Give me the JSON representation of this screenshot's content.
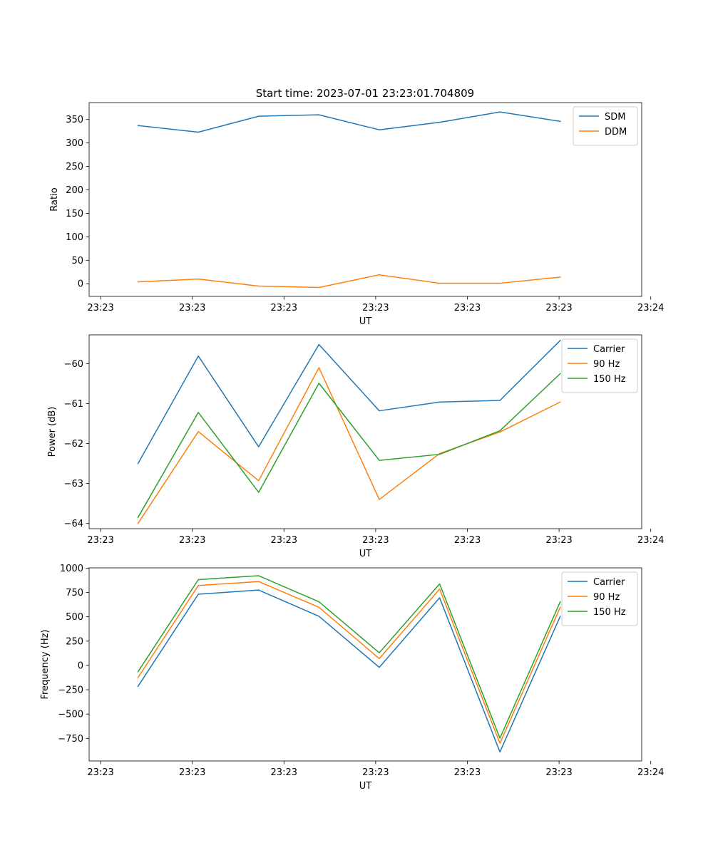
{
  "figure": {
    "title": "Start time: 2023-07-01 23:23:01.704809"
  },
  "chart_data": [
    {
      "type": "line",
      "xlabel": "UT",
      "ylabel": "Ratio",
      "x": [
        1,
        2,
        3,
        4,
        5,
        6,
        7,
        8
      ],
      "xlim": [
        0.19,
        9.35
      ],
      "xticks": [
        0.38,
        1.9,
        3.42,
        4.94,
        6.46,
        7.98,
        9.5
      ],
      "xtick_labels": [
        "23:23",
        "23:23",
        "23:23",
        "23:23",
        "23:23",
        "23:23",
        "23:24"
      ],
      "ylim": [
        -27,
        386
      ],
      "yticks": [
        0,
        50,
        100,
        150,
        200,
        250,
        300,
        350
      ],
      "ytick_labels": [
        "0",
        "50",
        "100",
        "150",
        "200",
        "250",
        "300",
        "350"
      ],
      "legend": "upper-right",
      "series": [
        {
          "name": "SDM",
          "color": "#1f77b4",
          "values": [
            337,
            323,
            357,
            360,
            328,
            344,
            366,
            346
          ]
        },
        {
          "name": "DDM",
          "color": "#ff7f0e",
          "values": [
            4,
            10,
            -5,
            -8,
            19,
            1,
            1,
            14
          ]
        }
      ]
    },
    {
      "type": "line",
      "xlabel": "UT",
      "ylabel": "Power (dB)",
      "x": [
        1,
        2,
        3,
        4,
        5,
        6,
        7,
        8
      ],
      "xlim": [
        0.19,
        9.35
      ],
      "xticks": [
        0.38,
        1.9,
        3.42,
        4.94,
        6.46,
        7.98,
        9.5
      ],
      "xtick_labels": [
        "23:23",
        "23:23",
        "23:23",
        "23:23",
        "23:23",
        "23:23",
        "23:24"
      ],
      "ylim": [
        -64.13,
        -59.28
      ],
      "yticks": [
        -64,
        -63,
        -62,
        -61,
        -60
      ],
      "ytick_labels": [
        "−64",
        "−63",
        "−62",
        "−61",
        "−60"
      ],
      "legend": "upper-right",
      "series": [
        {
          "name": "Carrier",
          "color": "#1f77b4",
          "values": [
            -62.5,
            -59.81,
            -62.08,
            -59.52,
            -61.18,
            -60.96,
            -60.92,
            -59.42
          ]
        },
        {
          "name": "90 Hz",
          "color": "#ff7f0e",
          "values": [
            -64.0,
            -61.7,
            -62.93,
            -60.1,
            -63.4,
            -62.25,
            -61.71,
            -60.96
          ]
        },
        {
          "name": "150 Hz",
          "color": "#2ca02c",
          "values": [
            -63.85,
            -61.22,
            -63.22,
            -60.49,
            -62.42,
            -62.27,
            -61.68,
            -60.25
          ]
        }
      ]
    },
    {
      "type": "line",
      "xlabel": "UT",
      "ylabel": "Frequency (Hz)",
      "x": [
        1,
        2,
        3,
        4,
        5,
        6,
        7,
        8
      ],
      "xlim": [
        0.19,
        9.35
      ],
      "xticks": [
        0.38,
        1.9,
        3.42,
        4.94,
        6.46,
        7.98,
        9.5
      ],
      "xtick_labels": [
        "23:23",
        "23:23",
        "23:23",
        "23:23",
        "23:23",
        "23:23",
        "23:24"
      ],
      "ylim": [
        -982,
        1003
      ],
      "yticks": [
        -750,
        -500,
        -250,
        0,
        250,
        500,
        750,
        1000
      ],
      "ytick_labels": [
        "−750",
        "−500",
        "−250",
        "0",
        "250",
        "500",
        "750",
        "1000"
      ],
      "legend": "upper-right",
      "series": [
        {
          "name": "Carrier",
          "color": "#1f77b4",
          "values": [
            -215,
            732,
            775,
            505,
            -20,
            695,
            -890,
            505
          ]
        },
        {
          "name": "90 Hz",
          "color": "#ff7f0e",
          "values": [
            -125,
            822,
            862,
            598,
            70,
            785,
            -800,
            598
          ]
        },
        {
          "name": "150 Hz",
          "color": "#2ca02c",
          "values": [
            -65,
            882,
            922,
            655,
            130,
            838,
            -748,
            655
          ]
        }
      ]
    }
  ]
}
